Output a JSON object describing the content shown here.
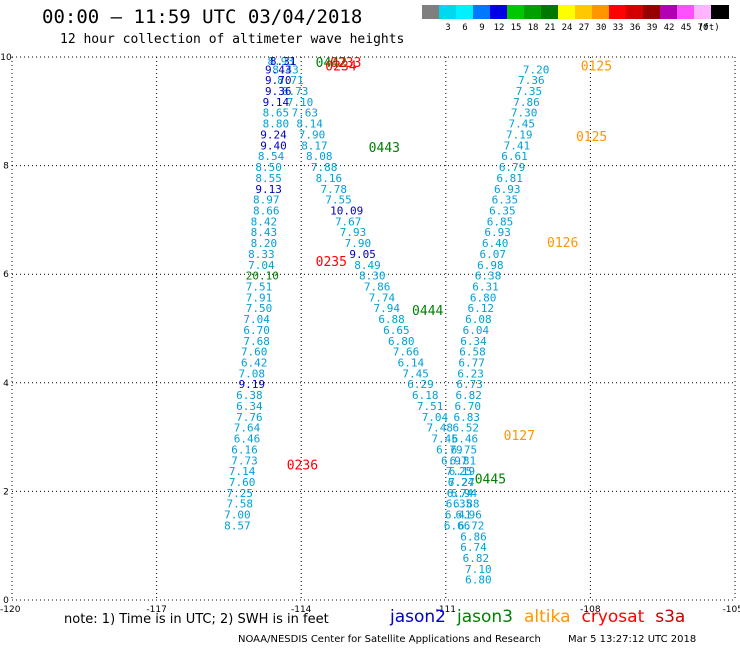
{
  "title": "00:00 – 11:59 UTC 03/04/2018",
  "subtitle": "12 hour collection of altimeter wave heights",
  "color_scale": {
    "unit": "(ft)",
    "levels": [
      {
        "label": "",
        "color": "#7f7f7f"
      },
      {
        "label": "3",
        "color": "#00d8f0"
      },
      {
        "label": "6",
        "color": "#00f0ff"
      },
      {
        "label": "9",
        "color": "#0078ff"
      },
      {
        "label": "12",
        "color": "#0000e6"
      },
      {
        "label": "15",
        "color": "#00c800"
      },
      {
        "label": "18",
        "color": "#00a000"
      },
      {
        "label": "21",
        "color": "#007800"
      },
      {
        "label": "24",
        "color": "#ffff00"
      },
      {
        "label": "27",
        "color": "#ffc800"
      },
      {
        "label": "30",
        "color": "#ff9600"
      },
      {
        "label": "33",
        "color": "#ff0000"
      },
      {
        "label": "36",
        "color": "#d20000"
      },
      {
        "label": "39",
        "color": "#960000"
      },
      {
        "label": "42",
        "color": "#b400b4"
      },
      {
        "label": "45",
        "color": "#ff50ff"
      },
      {
        "label": "70",
        "color": "#ffb4ff"
      },
      {
        "label": "",
        "color": "#000000"
      }
    ]
  },
  "map": {
    "lon_range": [
      -120,
      -105
    ],
    "lat_range": [
      0,
      10
    ],
    "x_ticks": [
      "-120",
      "-117",
      "-114",
      "-111",
      "-108",
      "-105"
    ],
    "y_ticks": [
      "0",
      "2",
      "4",
      "6",
      "8",
      "10"
    ],
    "grid": "dotted"
  },
  "colors": {
    "wave": "#00a0d8",
    "jason2": "#0000c8",
    "jason3": "#008000",
    "altika": "#ff9600",
    "cryosat": "#ff0000",
    "s3a": "#c80000"
  },
  "observations": [
    {
      "lon": -114.7,
      "lat": 9.9,
      "v": "8.93",
      "sat": "wave"
    },
    {
      "lon": -114.6,
      "lat": 9.7,
      "v": "8.43",
      "sat": "wave"
    },
    {
      "lon": -114.5,
      "lat": 9.5,
      "v": "8.71",
      "sat": "wave"
    },
    {
      "lon": -114.4,
      "lat": 9.3,
      "v": "8.73",
      "sat": "wave"
    },
    {
      "lon": -114.3,
      "lat": 9.1,
      "v": "7.10",
      "sat": "wave"
    },
    {
      "lon": -114.2,
      "lat": 8.9,
      "v": "7.63",
      "sat": "wave"
    },
    {
      "lon": -114.1,
      "lat": 8.7,
      "v": "8.14",
      "sat": "wave"
    },
    {
      "lon": -114.05,
      "lat": 8.5,
      "v": "7.90",
      "sat": "wave"
    },
    {
      "lon": -114.0,
      "lat": 8.3,
      "v": "8.17",
      "sat": "wave"
    },
    {
      "lon": -113.9,
      "lat": 8.1,
      "v": "8.08",
      "sat": "wave"
    },
    {
      "lon": -113.8,
      "lat": 7.9,
      "v": "7.88",
      "sat": "wave"
    },
    {
      "lon": -113.7,
      "lat": 7.7,
      "v": "8.16",
      "sat": "wave"
    },
    {
      "lon": -113.6,
      "lat": 7.5,
      "v": "7.78",
      "sat": "wave"
    },
    {
      "lon": -113.5,
      "lat": 7.3,
      "v": "7.55",
      "sat": "wave"
    },
    {
      "lon": -113.4,
      "lat": 7.1,
      "v": "10.09",
      "sat": "jason2"
    },
    {
      "lon": -113.3,
      "lat": 6.9,
      "v": "7.67",
      "sat": "wave"
    },
    {
      "lon": -113.2,
      "lat": 6.7,
      "v": "7.93",
      "sat": "wave"
    },
    {
      "lon": -113.1,
      "lat": 6.5,
      "v": "7.90",
      "sat": "wave"
    },
    {
      "lon": -113.0,
      "lat": 6.3,
      "v": "9.05",
      "sat": "jason2"
    },
    {
      "lon": -112.9,
      "lat": 6.1,
      "v": "8.49",
      "sat": "wave"
    },
    {
      "lon": -112.8,
      "lat": 5.9,
      "v": "8.30",
      "sat": "wave"
    },
    {
      "lon": -112.7,
      "lat": 5.7,
      "v": "7.86",
      "sat": "wave"
    },
    {
      "lon": -112.6,
      "lat": 5.5,
      "v": "7.74",
      "sat": "wave"
    },
    {
      "lon": -112.5,
      "lat": 5.3,
      "v": "7.94",
      "sat": "wave"
    },
    {
      "lon": -112.4,
      "lat": 5.1,
      "v": "6.88",
      "sat": "wave"
    },
    {
      "lon": -112.3,
      "lat": 4.9,
      "v": "6.65",
      "sat": "wave"
    },
    {
      "lon": -112.2,
      "lat": 4.7,
      "v": "6.80",
      "sat": "wave"
    },
    {
      "lon": -112.1,
      "lat": 4.5,
      "v": "7.66",
      "sat": "wave"
    },
    {
      "lon": -112.0,
      "lat": 4.3,
      "v": "6.14",
      "sat": "wave"
    },
    {
      "lon": -111.9,
      "lat": 4.1,
      "v": "7.45",
      "sat": "wave"
    },
    {
      "lon": -111.8,
      "lat": 3.9,
      "v": "6.29",
      "sat": "wave"
    },
    {
      "lon": -111.7,
      "lat": 3.7,
      "v": "6.18",
      "sat": "wave"
    },
    {
      "lon": -111.6,
      "lat": 3.5,
      "v": "7.51",
      "sat": "wave"
    },
    {
      "lon": -111.5,
      "lat": 3.3,
      "v": "7.04",
      "sat": "wave"
    },
    {
      "lon": -111.4,
      "lat": 3.1,
      "v": "7.48",
      "sat": "wave"
    },
    {
      "lon": -111.3,
      "lat": 2.9,
      "v": "7.45",
      "sat": "wave"
    },
    {
      "lon": -111.2,
      "lat": 2.7,
      "v": "6.79",
      "sat": "wave"
    },
    {
      "lon": -111.1,
      "lat": 2.5,
      "v": "6.97",
      "sat": "wave"
    },
    {
      "lon": -111.0,
      "lat": 2.3,
      "v": "7.25",
      "sat": "wave"
    },
    {
      "lon": -110.95,
      "lat": 2.1,
      "v": "7.27",
      "sat": "wave"
    },
    {
      "lon": -110.9,
      "lat": 1.9,
      "v": "6.94",
      "sat": "wave"
    },
    {
      "lon": -110.85,
      "lat": 1.7,
      "v": "6.88",
      "sat": "wave"
    },
    {
      "lon": -110.8,
      "lat": 1.5,
      "v": "6.96",
      "sat": "wave"
    },
    {
      "lon": -110.75,
      "lat": 1.3,
      "v": "6.72",
      "sat": "wave"
    },
    {
      "lon": -110.7,
      "lat": 1.1,
      "v": "6.86",
      "sat": "wave"
    },
    {
      "lon": -110.7,
      "lat": 0.9,
      "v": "6.74",
      "sat": "wave"
    },
    {
      "lon": -110.65,
      "lat": 0.7,
      "v": "6.82",
      "sat": "wave"
    },
    {
      "lon": -110.6,
      "lat": 0.5,
      "v": "7.10",
      "sat": "wave"
    },
    {
      "lon": -110.6,
      "lat": 0.3,
      "v": "6.80",
      "sat": "wave"
    },
    {
      "lon": -114.65,
      "lat": 9.9,
      "v": "8.31",
      "sat": "jason2"
    },
    {
      "lon": -114.75,
      "lat": 9.7,
      "v": "9.43",
      "sat": "jason2"
    },
    {
      "lon": -114.75,
      "lat": 9.5,
      "v": "9.70",
      "sat": "jason2"
    },
    {
      "lon": -114.75,
      "lat": 9.3,
      "v": "9.36",
      "sat": "jason2"
    },
    {
      "lon": -114.8,
      "lat": 9.1,
      "v": "9.14",
      "sat": "jason2"
    },
    {
      "lon": -114.8,
      "lat": 8.9,
      "v": "8.65",
      "sat": "wave"
    },
    {
      "lon": -114.8,
      "lat": 8.7,
      "v": "8.80",
      "sat": "wave"
    },
    {
      "lon": -114.85,
      "lat": 8.5,
      "v": "9.24",
      "sat": "jason2"
    },
    {
      "lon": -114.85,
      "lat": 8.3,
      "v": "9.40",
      "sat": "jason2"
    },
    {
      "lon": -114.9,
      "lat": 8.1,
      "v": "8.54",
      "sat": "wave"
    },
    {
      "lon": -114.95,
      "lat": 7.9,
      "v": "8.50",
      "sat": "wave"
    },
    {
      "lon": -114.95,
      "lat": 7.7,
      "v": "8.55",
      "sat": "wave"
    },
    {
      "lon": -114.95,
      "lat": 7.5,
      "v": "9.13",
      "sat": "jason2"
    },
    {
      "lon": -115.0,
      "lat": 7.3,
      "v": "8.97",
      "sat": "wave"
    },
    {
      "lon": -115.0,
      "lat": 7.1,
      "v": "8.66",
      "sat": "wave"
    },
    {
      "lon": -115.05,
      "lat": 6.9,
      "v": "8.42",
      "sat": "wave"
    },
    {
      "lon": -115.05,
      "lat": 6.7,
      "v": "8.43",
      "sat": "wave"
    },
    {
      "lon": -115.05,
      "lat": 6.5,
      "v": "8.20",
      "sat": "wave"
    },
    {
      "lon": -115.1,
      "lat": 6.3,
      "v": "8.33",
      "sat": "wave"
    },
    {
      "lon": -115.1,
      "lat": 6.1,
      "v": "7.04",
      "sat": "wave"
    },
    {
      "lon": -115.15,
      "lat": 5.9,
      "v": "20.10",
      "sat": "jason3"
    },
    {
      "lon": -115.15,
      "lat": 5.7,
      "v": "7.51",
      "sat": "wave"
    },
    {
      "lon": -115.15,
      "lat": 5.5,
      "v": "7.91",
      "sat": "wave"
    },
    {
      "lon": -115.15,
      "lat": 5.3,
      "v": "7.50",
      "sat": "wave"
    },
    {
      "lon": -115.2,
      "lat": 5.1,
      "v": "7.04",
      "sat": "wave"
    },
    {
      "lon": -115.2,
      "lat": 4.9,
      "v": "6.70",
      "sat": "wave"
    },
    {
      "lon": -115.2,
      "lat": 4.7,
      "v": "7.68",
      "sat": "wave"
    },
    {
      "lon": -115.25,
      "lat": 4.5,
      "v": "7.60",
      "sat": "wave"
    },
    {
      "lon": -115.25,
      "lat": 4.3,
      "v": "6.42",
      "sat": "wave"
    },
    {
      "lon": -115.3,
      "lat": 4.1,
      "v": "7.08",
      "sat": "wave"
    },
    {
      "lon": -115.3,
      "lat": 3.9,
      "v": "9.19",
      "sat": "jason2"
    },
    {
      "lon": -115.35,
      "lat": 3.7,
      "v": "6.38",
      "sat": "wave"
    },
    {
      "lon": -115.35,
      "lat": 3.5,
      "v": "6.34",
      "sat": "wave"
    },
    {
      "lon": -115.35,
      "lat": 3.3,
      "v": "7.76",
      "sat": "wave"
    },
    {
      "lon": -115.4,
      "lat": 3.1,
      "v": "7.64",
      "sat": "wave"
    },
    {
      "lon": -115.4,
      "lat": 2.9,
      "v": "6.46",
      "sat": "wave"
    },
    {
      "lon": -115.45,
      "lat": 2.7,
      "v": "6.16",
      "sat": "wave"
    },
    {
      "lon": -115.45,
      "lat": 2.5,
      "v": "7.73",
      "sat": "wave"
    },
    {
      "lon": -115.5,
      "lat": 2.3,
      "v": "7.14",
      "sat": "wave"
    },
    {
      "lon": -115.5,
      "lat": 2.1,
      "v": "7.60",
      "sat": "wave"
    },
    {
      "lon": -115.55,
      "lat": 1.9,
      "v": "7.25",
      "sat": "wave"
    },
    {
      "lon": -115.55,
      "lat": 1.7,
      "v": "7.58",
      "sat": "wave"
    },
    {
      "lon": -115.6,
      "lat": 1.5,
      "v": "7.00",
      "sat": "wave"
    },
    {
      "lon": -115.6,
      "lat": 1.3,
      "v": "8.57",
      "sat": "wave"
    },
    {
      "lon": -109.4,
      "lat": 9.7,
      "v": "7.20",
      "sat": "wave"
    },
    {
      "lon": -109.5,
      "lat": 9.5,
      "v": "7.36",
      "sat": "wave"
    },
    {
      "lon": -109.55,
      "lat": 9.3,
      "v": "7.35",
      "sat": "wave"
    },
    {
      "lon": -109.6,
      "lat": 9.1,
      "v": "7.86",
      "sat": "wave"
    },
    {
      "lon": -109.65,
      "lat": 8.9,
      "v": "7.30",
      "sat": "wave"
    },
    {
      "lon": -109.7,
      "lat": 8.7,
      "v": "7.45",
      "sat": "wave"
    },
    {
      "lon": -109.75,
      "lat": 8.5,
      "v": "7.19",
      "sat": "wave"
    },
    {
      "lon": -109.8,
      "lat": 8.3,
      "v": "7.41",
      "sat": "wave"
    },
    {
      "lon": -109.85,
      "lat": 8.1,
      "v": "6.61",
      "sat": "wave"
    },
    {
      "lon": -109.9,
      "lat": 7.9,
      "v": "6.79",
      "sat": "wave"
    },
    {
      "lon": -109.95,
      "lat": 7.7,
      "v": "6.81",
      "sat": "wave"
    },
    {
      "lon": -110.0,
      "lat": 7.5,
      "v": "6.93",
      "sat": "wave"
    },
    {
      "lon": -110.05,
      "lat": 7.3,
      "v": "6.35",
      "sat": "wave"
    },
    {
      "lon": -110.1,
      "lat": 7.1,
      "v": "6.35",
      "sat": "wave"
    },
    {
      "lon": -110.15,
      "lat": 6.9,
      "v": "6.85",
      "sat": "wave"
    },
    {
      "lon": -110.2,
      "lat": 6.7,
      "v": "6.93",
      "sat": "wave"
    },
    {
      "lon": -110.25,
      "lat": 6.5,
      "v": "6.40",
      "sat": "wave"
    },
    {
      "lon": -110.3,
      "lat": 6.3,
      "v": "6.07",
      "sat": "wave"
    },
    {
      "lon": -110.35,
      "lat": 6.1,
      "v": "6.98",
      "sat": "wave"
    },
    {
      "lon": -110.4,
      "lat": 5.9,
      "v": "6.38",
      "sat": "wave"
    },
    {
      "lon": -110.45,
      "lat": 5.7,
      "v": "6.31",
      "sat": "wave"
    },
    {
      "lon": -110.5,
      "lat": 5.5,
      "v": "6.80",
      "sat": "wave"
    },
    {
      "lon": -110.55,
      "lat": 5.3,
      "v": "6.12",
      "sat": "wave"
    },
    {
      "lon": -110.6,
      "lat": 5.1,
      "v": "6.08",
      "sat": "wave"
    },
    {
      "lon": -110.65,
      "lat": 4.9,
      "v": "6.04",
      "sat": "wave"
    },
    {
      "lon": -110.7,
      "lat": 4.7,
      "v": "6.34",
      "sat": "wave"
    },
    {
      "lon": -110.72,
      "lat": 4.5,
      "v": "6.58",
      "sat": "wave"
    },
    {
      "lon": -110.74,
      "lat": 4.3,
      "v": "6.77",
      "sat": "wave"
    },
    {
      "lon": -110.76,
      "lat": 4.1,
      "v": "6.23",
      "sat": "wave"
    },
    {
      "lon": -110.78,
      "lat": 3.9,
      "v": "6.73",
      "sat": "wave"
    },
    {
      "lon": -110.8,
      "lat": 3.7,
      "v": "6.82",
      "sat": "wave"
    },
    {
      "lon": -110.82,
      "lat": 3.5,
      "v": "6.70",
      "sat": "wave"
    },
    {
      "lon": -110.84,
      "lat": 3.3,
      "v": "6.83",
      "sat": "wave"
    },
    {
      "lon": -110.86,
      "lat": 3.1,
      "v": "6.52",
      "sat": "wave"
    },
    {
      "lon": -110.88,
      "lat": 2.9,
      "v": "6.46",
      "sat": "wave"
    },
    {
      "lon": -110.9,
      "lat": 2.7,
      "v": "6.75",
      "sat": "wave"
    },
    {
      "lon": -110.92,
      "lat": 2.5,
      "v": "6.81",
      "sat": "wave"
    },
    {
      "lon": -110.94,
      "lat": 2.3,
      "v": "6.19",
      "sat": "wave"
    },
    {
      "lon": -110.96,
      "lat": 2.1,
      "v": "6.24",
      "sat": "wave"
    },
    {
      "lon": -110.98,
      "lat": 1.9,
      "v": "6.74",
      "sat": "wave"
    },
    {
      "lon": -111.0,
      "lat": 1.7,
      "v": "6.35",
      "sat": "wave"
    },
    {
      "lon": -111.02,
      "lat": 1.5,
      "v": "6.41",
      "sat": "wave"
    },
    {
      "lon": -111.04,
      "lat": 1.3,
      "v": "6.66",
      "sat": "wave"
    }
  ],
  "pass_labels": [
    {
      "lon": -113.7,
      "lat": 10.0,
      "v": "0442",
      "sat": "jason3"
    },
    {
      "lon": -113.4,
      "lat": 10.0,
      "v": "0233",
      "sat": "cryosat"
    },
    {
      "lon": -113.5,
      "lat": 9.75,
      "v": "0234",
      "sat": "cryosat"
    },
    {
      "lon": -108.2,
      "lat": 9.75,
      "v": "0125",
      "sat": "altika"
    },
    {
      "lon": -112.6,
      "lat": 8.25,
      "v": "0443",
      "sat": "jason3"
    },
    {
      "lon": -108.3,
      "lat": 8.45,
      "v": "0125",
      "sat": "altika"
    },
    {
      "lon": -108.9,
      "lat": 6.5,
      "v": "0126",
      "sat": "altika"
    },
    {
      "lon": -113.7,
      "lat": 6.15,
      "v": "0235",
      "sat": "cryosat"
    },
    {
      "lon": -111.7,
      "lat": 5.25,
      "v": "0444",
      "sat": "jason3"
    },
    {
      "lon": -109.8,
      "lat": 2.95,
      "v": "0127",
      "sat": "altika"
    },
    {
      "lon": -114.3,
      "lat": 2.4,
      "v": "0236",
      "sat": "cryosat"
    },
    {
      "lon": -110.4,
      "lat": 2.15,
      "v": "0445",
      "sat": "jason3"
    }
  ],
  "note": "note:  1) Time is in UTC;  2) SWH is in feet",
  "satellites": [
    {
      "name": "jason2",
      "color": "#0000c8"
    },
    {
      "name": "jason3",
      "color": "#008000"
    },
    {
      "name": "altika",
      "color": "#ff9600"
    },
    {
      "name": "cryosat",
      "color": "#ff0000"
    },
    {
      "name": "s3a",
      "color": "#c80000"
    }
  ],
  "credit": "NOAA/NESDIS Center for Satellite Applications and Research",
  "timestamp": "Mar  5 13:27:12 UTC 2018"
}
